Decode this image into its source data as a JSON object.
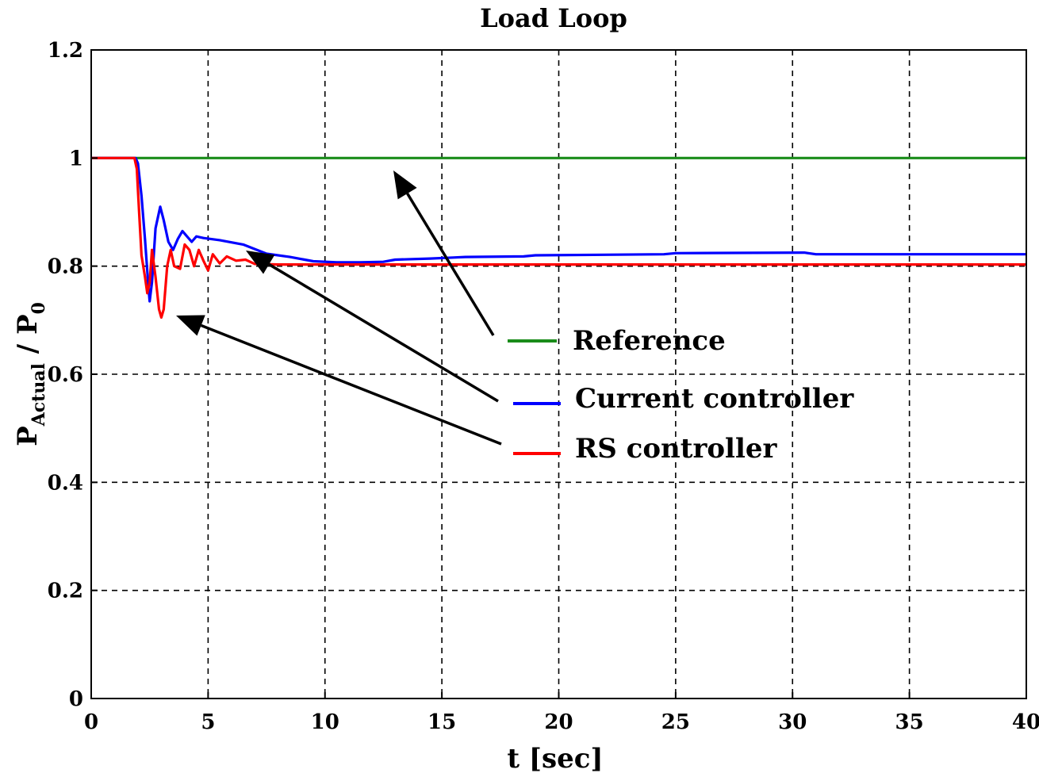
{
  "chart_data": {
    "type": "line",
    "title": "Load Loop",
    "xlabel": "t [sec]",
    "ylabel": {
      "main": "P",
      "sub": "Actual",
      "sep": " / P",
      "sub2": "0"
    },
    "xlim": [
      0,
      40
    ],
    "ylim": [
      0,
      1.2
    ],
    "xticks": [
      0,
      5,
      10,
      15,
      20,
      25,
      30,
      35,
      40
    ],
    "yticks": [
      0,
      0.2,
      0.4,
      0.6,
      0.8,
      1,
      1.2
    ],
    "grid": true,
    "legend_position": "center-right",
    "series": [
      {
        "name": "Reference",
        "color": "#1a8c1a",
        "points": [
          [
            0,
            1.0
          ],
          [
            40,
            1.0
          ]
        ]
      },
      {
        "name": "Current controller",
        "color": "#0000ff",
        "points": [
          [
            0,
            1.0
          ],
          [
            1.9,
            1.0
          ],
          [
            2.0,
            0.99
          ],
          [
            2.15,
            0.93
          ],
          [
            2.3,
            0.85
          ],
          [
            2.45,
            0.76
          ],
          [
            2.5,
            0.735
          ],
          [
            2.6,
            0.77
          ],
          [
            2.75,
            0.87
          ],
          [
            2.95,
            0.91
          ],
          [
            3.1,
            0.885
          ],
          [
            3.3,
            0.845
          ],
          [
            3.5,
            0.83
          ],
          [
            3.7,
            0.85
          ],
          [
            3.9,
            0.865
          ],
          [
            4.1,
            0.855
          ],
          [
            4.3,
            0.845
          ],
          [
            4.5,
            0.855
          ],
          [
            4.8,
            0.852
          ],
          [
            5.5,
            0.848
          ],
          [
            6.5,
            0.84
          ],
          [
            7.5,
            0.823
          ],
          [
            8.5,
            0.817
          ],
          [
            9.5,
            0.809
          ],
          [
            10.5,
            0.807
          ],
          [
            11.5,
            0.807
          ],
          [
            12.5,
            0.808
          ],
          [
            13.0,
            0.812
          ],
          [
            14.5,
            0.814
          ],
          [
            15.5,
            0.816
          ],
          [
            16.0,
            0.817
          ],
          [
            18.5,
            0.818
          ],
          [
            19.0,
            0.82
          ],
          [
            24.5,
            0.822
          ],
          [
            25.0,
            0.824
          ],
          [
            30.5,
            0.825
          ],
          [
            31.0,
            0.822
          ],
          [
            40,
            0.822
          ]
        ]
      },
      {
        "name": "RS controller",
        "color": "#ff0000",
        "points": [
          [
            0,
            1.0
          ],
          [
            1.85,
            1.0
          ],
          [
            1.95,
            0.98
          ],
          [
            2.05,
            0.9
          ],
          [
            2.15,
            0.82
          ],
          [
            2.3,
            0.78
          ],
          [
            2.4,
            0.75
          ],
          [
            2.5,
            0.77
          ],
          [
            2.6,
            0.83
          ],
          [
            2.75,
            0.78
          ],
          [
            2.9,
            0.72
          ],
          [
            3.0,
            0.705
          ],
          [
            3.1,
            0.72
          ],
          [
            3.25,
            0.8
          ],
          [
            3.4,
            0.83
          ],
          [
            3.55,
            0.8
          ],
          [
            3.8,
            0.795
          ],
          [
            4.0,
            0.84
          ],
          [
            4.2,
            0.83
          ],
          [
            4.4,
            0.8
          ],
          [
            4.6,
            0.83
          ],
          [
            4.8,
            0.81
          ],
          [
            5.0,
            0.792
          ],
          [
            5.2,
            0.822
          ],
          [
            5.5,
            0.805
          ],
          [
            5.8,
            0.818
          ],
          [
            6.2,
            0.81
          ],
          [
            6.6,
            0.812
          ],
          [
            7.0,
            0.804
          ],
          [
            8.0,
            0.803
          ],
          [
            9.0,
            0.803
          ],
          [
            10,
            0.803
          ],
          [
            15,
            0.803
          ],
          [
            20,
            0.803
          ],
          [
            30,
            0.803
          ],
          [
            40,
            0.803
          ]
        ]
      }
    ]
  }
}
